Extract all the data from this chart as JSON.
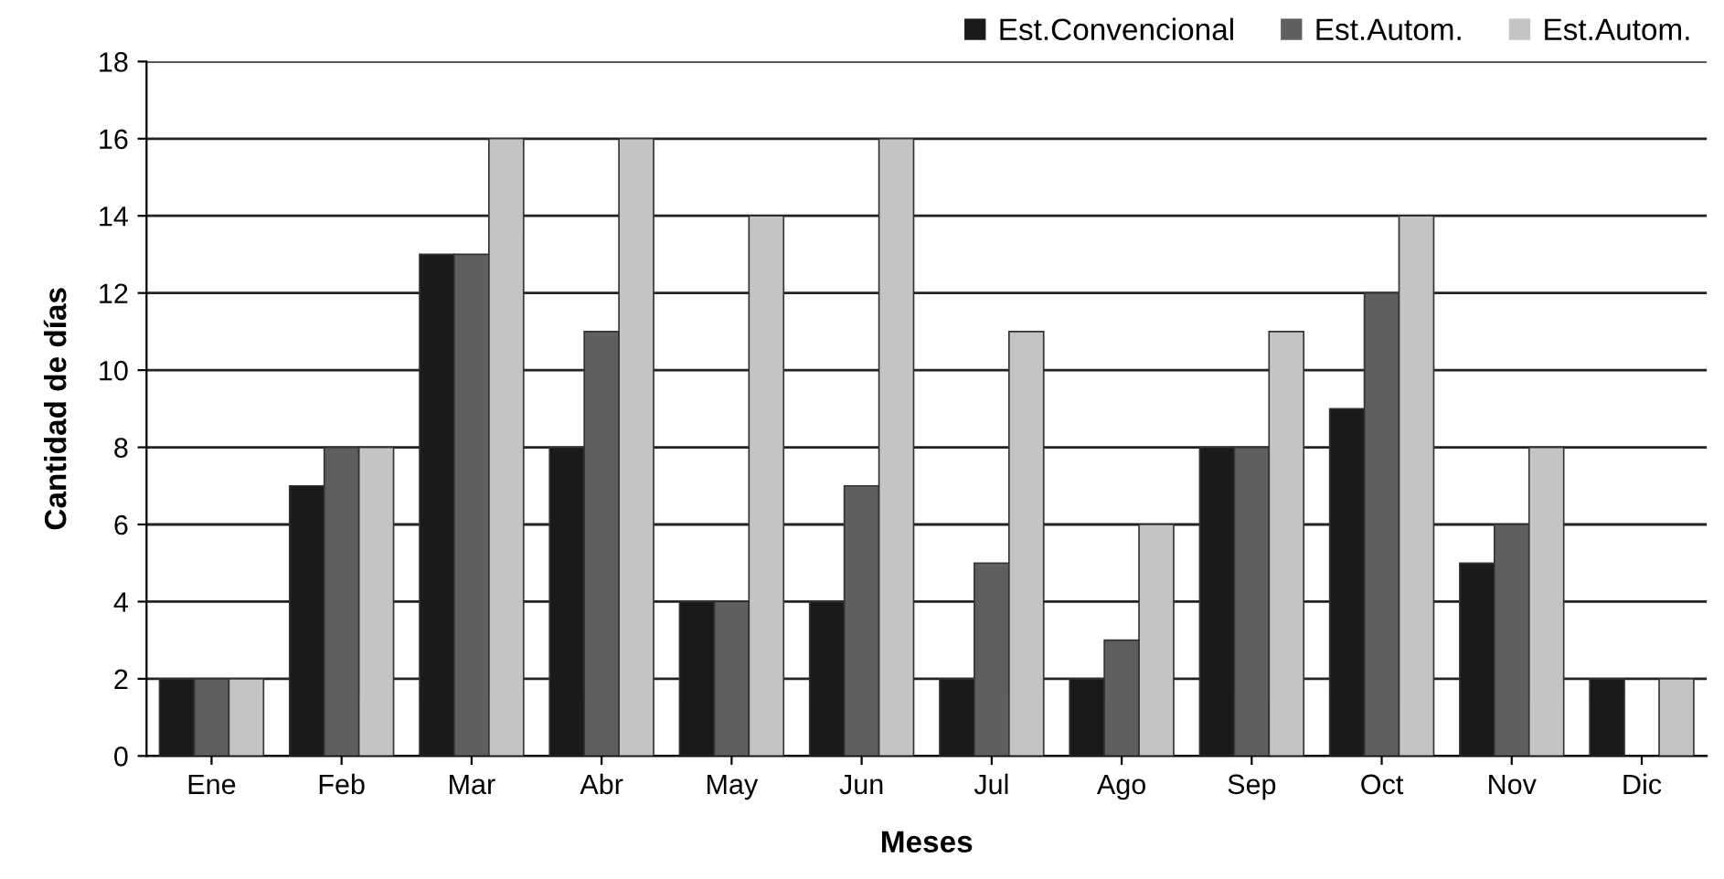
{
  "chart_data": {
    "type": "bar",
    "xlabel": "Meses",
    "ylabel": "Cantidad de días",
    "categories": [
      "Ene",
      "Feb",
      "Mar",
      "Abr",
      "May",
      "Jun",
      "Jul",
      "Ago",
      "Sep",
      "Oct",
      "Nov",
      "Dic"
    ],
    "series": [
      {
        "name": "Est.Convencional",
        "color": "#1a1a1a",
        "values": [
          2,
          7,
          13,
          8,
          4,
          4,
          2,
          2,
          8,
          9,
          5,
          2
        ]
      },
      {
        "name": "Est.Autom.",
        "color": "#5f5f5f",
        "values": [
          2,
          8,
          13,
          11,
          4,
          7,
          5,
          3,
          8,
          12,
          6,
          null
        ]
      },
      {
        "name": "Est.Autom.",
        "color": "#c4c4c4",
        "values": [
          2,
          8,
          16,
          16,
          14,
          16,
          11,
          6,
          11,
          14,
          8,
          2
        ]
      }
    ],
    "ylim": [
      0,
      18
    ],
    "yticks": [
      0,
      2,
      4,
      6,
      8,
      10,
      12,
      14,
      16,
      18
    ],
    "grid": "y",
    "legend": "top right"
  }
}
